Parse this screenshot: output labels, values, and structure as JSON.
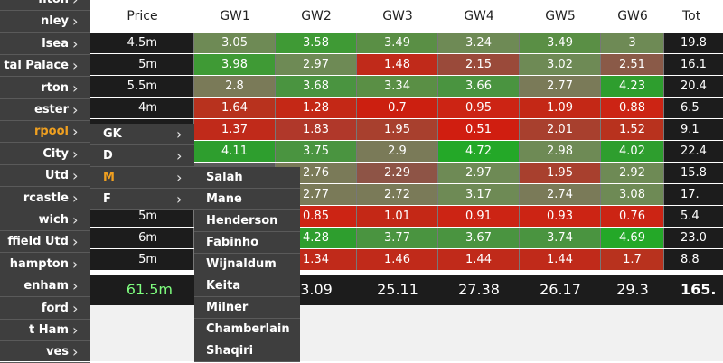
{
  "colors": {
    "menu_bg": "#3e3e3e",
    "highlight": "#f0a020",
    "total_green": "#7fff7f"
  },
  "header": [
    "Price",
    "GW1",
    "GW2",
    "GW3",
    "GW4",
    "GW5",
    "GW6",
    "Tot"
  ],
  "rows": [
    {
      "price": "4.5m",
      "gw": [
        {
          "v": "3.05",
          "c": "#6e8a55"
        },
        {
          "v": "3.58",
          "c": "#3f9a35"
        },
        {
          "v": "3.49",
          "c": "#5a8f45"
        },
        {
          "v": "3.24",
          "c": "#6e8a55"
        },
        {
          "v": "3.49",
          "c": "#5a8f45"
        },
        {
          "v": "3",
          "c": "#6e8a55"
        }
      ],
      "tot": "19.8"
    },
    {
      "price": "5m",
      "gw": [
        {
          "v": "3.98",
          "c": "#3f9a35"
        },
        {
          "v": "2.97",
          "c": "#6e8a55"
        },
        {
          "v": "1.48",
          "c": "#c02a1a"
        },
        {
          "v": "2.15",
          "c": "#9a4a3a"
        },
        {
          "v": "3.02",
          "c": "#6e8a55"
        },
        {
          "v": "2.51",
          "c": "#8a5a48"
        }
      ],
      "tot": "16.1"
    },
    {
      "price": "5.5m",
      "gw": [
        {
          "v": "2.8",
          "c": "#7a7a58"
        },
        {
          "v": "3.68",
          "c": "#4a9440"
        },
        {
          "v": "3.34",
          "c": "#5a8f45"
        },
        {
          "v": "3.66",
          "c": "#4a9440"
        },
        {
          "v": "2.77",
          "c": "#7a7a58"
        },
        {
          "v": "4.23",
          "c": "#2e9e2e"
        }
      ],
      "tot": "20.4"
    },
    {
      "price": "4m",
      "gw": [
        {
          "v": "1.64",
          "c": "#b8321e"
        },
        {
          "v": "1.28",
          "c": "#c42816"
        },
        {
          "v": "0.7",
          "c": "#cc1f10"
        },
        {
          "v": "0.95",
          "c": "#cc2414"
        },
        {
          "v": "1.09",
          "c": "#c42816"
        },
        {
          "v": "0.88",
          "c": "#cc2414"
        }
      ],
      "tot": "6.5"
    },
    {
      "price": "",
      "gw": [
        {
          "v": "1.37",
          "c": "#c02a1a"
        },
        {
          "v": "1.83",
          "c": "#b0382a"
        },
        {
          "v": "1.95",
          "c": "#a8402e"
        },
        {
          "v": "0.51",
          "c": "#d01e10"
        },
        {
          "v": "2.01",
          "c": "#a8402e"
        },
        {
          "v": "1.52",
          "c": "#b8321e"
        }
      ],
      "tot": "9.1"
    },
    {
      "price": "",
      "gw": [
        {
          "v": "4.11",
          "c": "#2e9e2e"
        },
        {
          "v": "3.75",
          "c": "#4a9440"
        },
        {
          "v": "2.9",
          "c": "#7a7a58"
        },
        {
          "v": "4.72",
          "c": "#24a828"
        },
        {
          "v": "2.98",
          "c": "#6e8a55"
        },
        {
          "v": "4.02",
          "c": "#2e9e2e"
        }
      ],
      "tot": "22.4"
    },
    {
      "price": "",
      "gw": [
        {
          "v": "2.76",
          "c": "#7a7a58"
        },
        {
          "v": "2.29",
          "c": "#8e5446"
        },
        {
          "v": "2.97",
          "c": "#6e8a55"
        },
        {
          "v": "1.95",
          "c": "#a8402e"
        },
        {
          "v": "2.92",
          "c": "#6e8a55"
        }
      ],
      "tot": "15.8",
      "short": true
    },
    {
      "price": "",
      "gw": [
        {
          "v": "2.77",
          "c": "#7a7a58"
        },
        {
          "v": "2.72",
          "c": "#7a7a58"
        },
        {
          "v": "3.17",
          "c": "#6e8a55"
        },
        {
          "v": "2.74",
          "c": "#7a7a58"
        },
        {
          "v": "3.08",
          "c": "#6e8a55"
        }
      ],
      "tot": "17.",
      "short": true
    },
    {
      "price": "5m",
      "gw": [
        {
          "v": "0.85",
          "c": "#cc2414"
        },
        {
          "v": "1.01",
          "c": "#c42816"
        },
        {
          "v": "0.91",
          "c": "#cc2414"
        },
        {
          "v": "0.93",
          "c": "#cc2414"
        },
        {
          "v": "0.76",
          "c": "#cc2414"
        }
      ],
      "tot": "5.4",
      "short": true
    },
    {
      "price": "6m",
      "gw": [
        {
          "v": "4.28",
          "c": "#2e9e2e"
        },
        {
          "v": "3.77",
          "c": "#4a9440"
        },
        {
          "v": "3.67",
          "c": "#4a9440"
        },
        {
          "v": "3.74",
          "c": "#4a9440"
        },
        {
          "v": "4.69",
          "c": "#24a828"
        }
      ],
      "tot": "23.0",
      "short": true
    },
    {
      "price": "5m",
      "gw": [
        {
          "v": "1.34",
          "c": "#c02a1a"
        },
        {
          "v": "1.46",
          "c": "#c02a1a"
        },
        {
          "v": "1.44",
          "c": "#c02a1a"
        },
        {
          "v": "1.44",
          "c": "#c02a1a"
        },
        {
          "v": "1.7",
          "c": "#b8321e"
        }
      ],
      "tot": "8.8",
      "short": true
    }
  ],
  "totals": {
    "price": "61.5m",
    "gw": [
      "3.09",
      "25.11",
      "27.38",
      "26.17",
      "29.3"
    ],
    "tot": "165."
  },
  "teams": [
    "hton",
    "nley",
    "lsea",
    "tal Palace",
    "rton",
    "ester",
    "rpool",
    " City",
    " Utd",
    "rcastle",
    "wich",
    "ffield Utd",
    "hampton",
    "enham",
    "ford",
    "t Ham",
    "ves"
  ],
  "selected_team": "rpool",
  "positions": [
    "GK",
    "D",
    "M",
    "F"
  ],
  "selected_position": "M",
  "players": [
    "Salah",
    "Mane",
    "Henderson",
    "Fabinho",
    "Wijnaldum",
    "Keita",
    "Milner",
    "Chamberlain",
    "Shaqiri"
  ]
}
